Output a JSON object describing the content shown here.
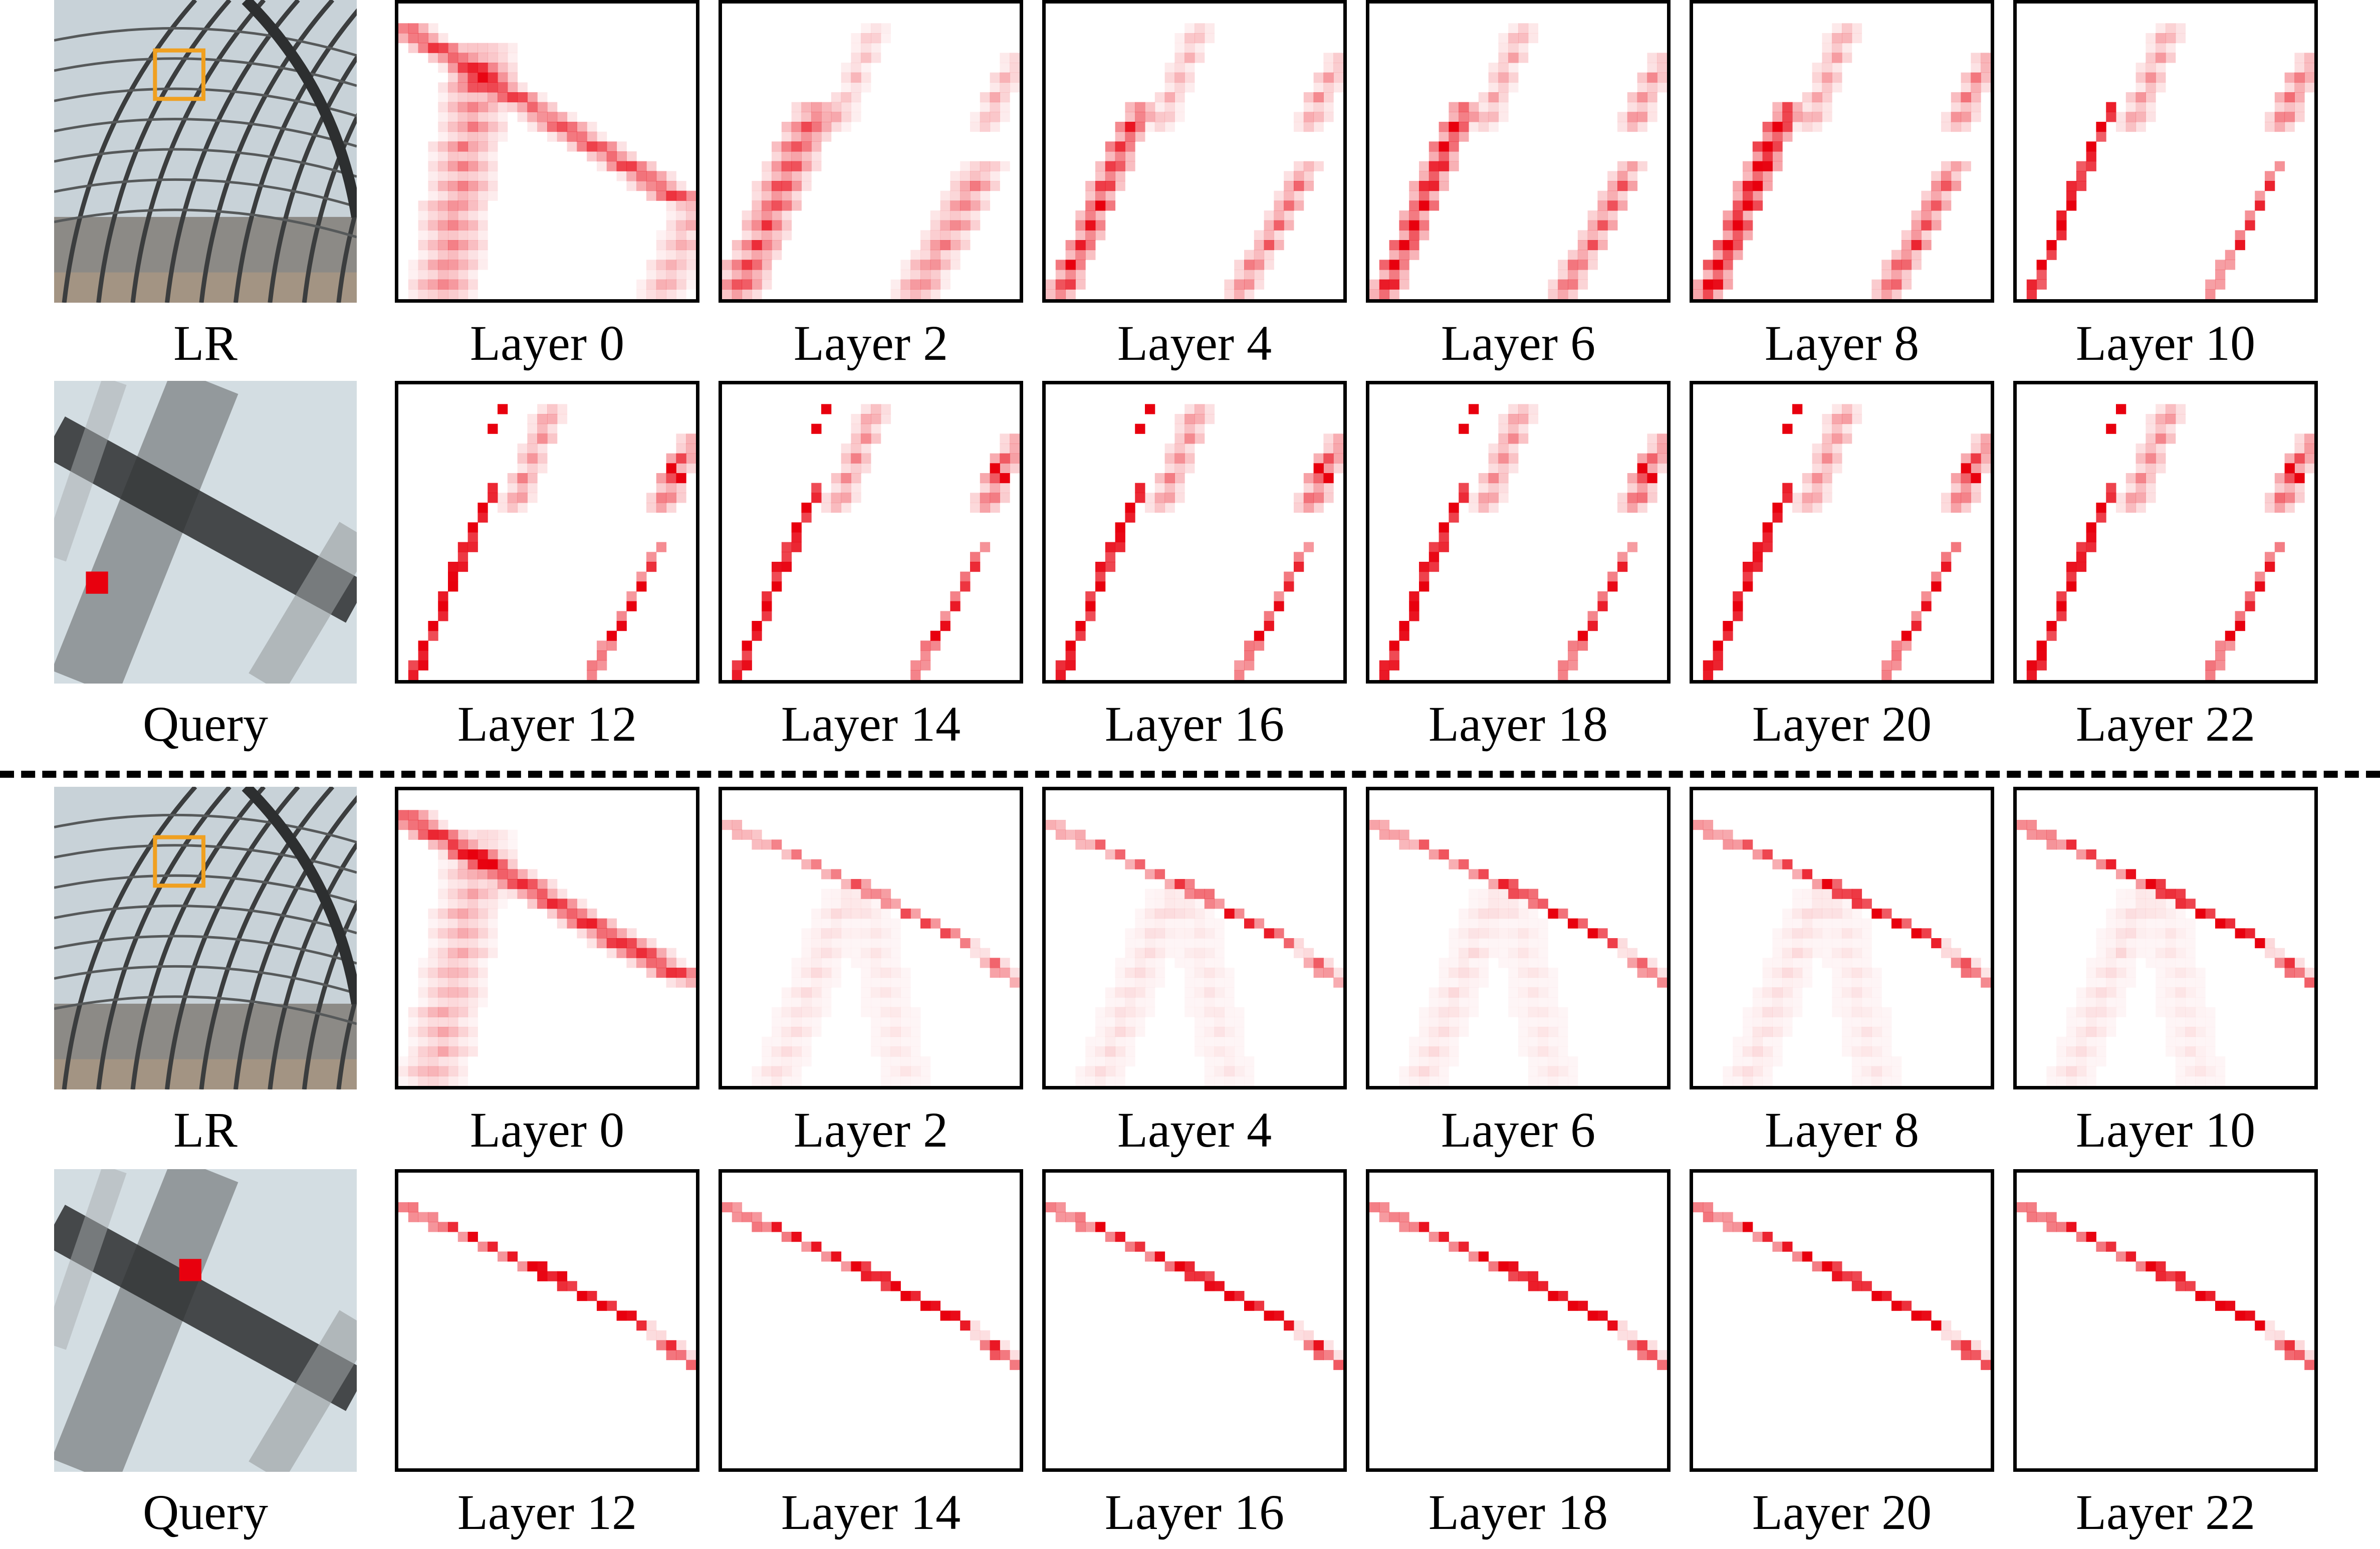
{
  "figure": {
    "colors": {
      "attention": "#e8000e",
      "crop_box": "#f0a020",
      "query_marker": "#e8000e",
      "frame": "#000000"
    },
    "groups": [
      {
        "rows": [
          {
            "side_label": "LR",
            "side_image": "lr-thumbnail-photo",
            "maps": [
              "Layer 0",
              "Layer 2",
              "Layer 4",
              "Layer 6",
              "Layer 8",
              "Layer 10"
            ]
          },
          {
            "side_label": "Query",
            "side_image": "query-zoom-photo",
            "maps": [
              "Layer 12",
              "Layer 14",
              "Layer 16",
              "Layer 18",
              "Layer 20",
              "Layer 22"
            ]
          }
        ]
      },
      {
        "rows": [
          {
            "side_label": "LR",
            "side_image": "lr-thumbnail-photo",
            "maps": [
              "Layer 0",
              "Layer 2",
              "Layer 4",
              "Layer 6",
              "Layer 8",
              "Layer 10"
            ]
          },
          {
            "side_label": "Query",
            "side_image": "query-zoom-photo",
            "maps": [
              "Layer 12",
              "Layer 14",
              "Layer 16",
              "Layer 18",
              "Layer 20",
              "Layer 22"
            ]
          }
        ]
      }
    ]
  }
}
